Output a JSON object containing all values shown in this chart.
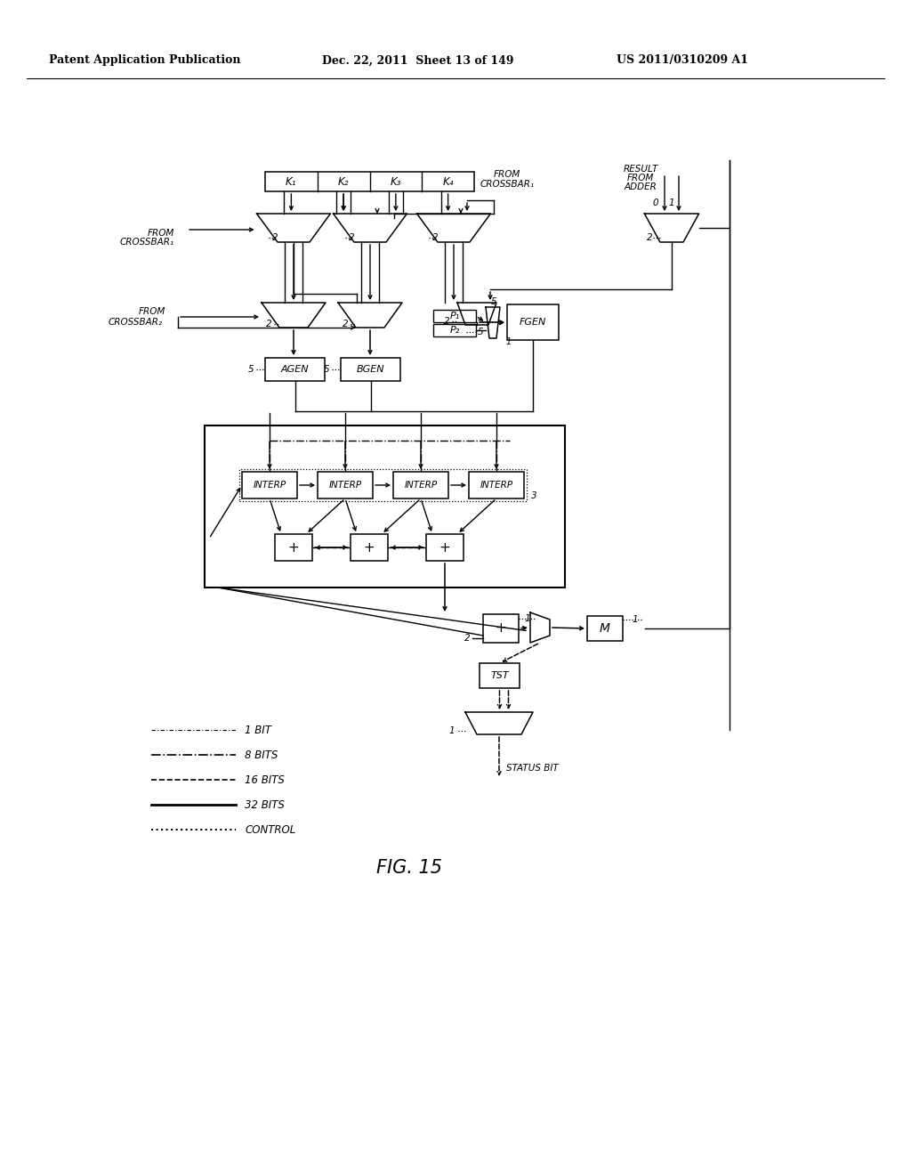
{
  "title_left": "Patent Application Publication",
  "title_mid": "Dec. 22, 2011  Sheet 13 of 149",
  "title_right": "US 2011/0310209 A1",
  "fig_label": "FIG. 15",
  "background": "#ffffff"
}
